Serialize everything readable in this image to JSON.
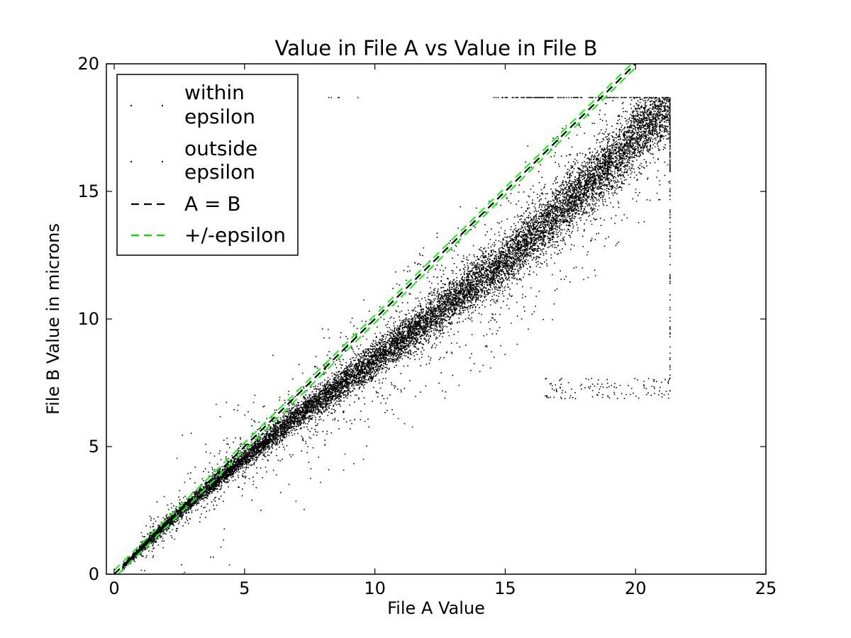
{
  "chart_data": {
    "type": "scatter",
    "title": "Value in File A vs Value in File B",
    "xlabel": "File A Value",
    "ylabel": "File B Value in microns",
    "xlim": [
      -0.3,
      25
    ],
    "ylim": [
      0,
      20
    ],
    "xticks": [
      0,
      5,
      10,
      15,
      20,
      25
    ],
    "yticks": [
      0,
      5,
      10,
      15,
      20
    ],
    "grid": false,
    "legend_position": "top-left",
    "legend": [
      {
        "label_lines": [
          "within",
          "epsilon"
        ],
        "kind": "marker"
      },
      {
        "label_lines": [
          "outside",
          "epsilon"
        ],
        "kind": "marker"
      },
      {
        "label_lines": [
          "A = B"
        ],
        "kind": "dashed-line",
        "color": "#000000"
      },
      {
        "label_lines": [
          "+/-epsilon"
        ],
        "kind": "dashed-line",
        "color": "#00dd00"
      }
    ],
    "colors": {
      "points": "#000000",
      "identity_line": "#000000",
      "epsilon_lines": "#22ee22"
    },
    "lines": {
      "identity": {
        "x": [
          0,
          20
        ],
        "y": [
          0,
          20
        ]
      },
      "epsilon_upper": {
        "x": [
          0,
          19.85
        ],
        "y": [
          0.15,
          20
        ]
      },
      "epsilon_lower": {
        "x": [
          0.15,
          20
        ],
        "y": [
          0,
          19.85
        ]
      }
    },
    "main_trend": {
      "description_points_x": [
        0,
        2,
        3,
        5,
        7,
        10,
        12,
        15,
        17,
        19,
        20,
        21.3
      ],
      "description_points_y": [
        0,
        2,
        2.9,
        4.6,
        6.2,
        8.4,
        10.0,
        12.3,
        14.2,
        16.1,
        17.2,
        18.5
      ]
    },
    "saturation": {
      "y_max": 18.7,
      "x_max": 21.3
    },
    "outlier_clusters": [
      {
        "x": [
          16.5,
          21.3
        ],
        "y": [
          6.8,
          7.8
        ]
      },
      {
        "x": [
          21.3,
          21.3
        ],
        "y": [
          7.0,
          18.7
        ]
      },
      {
        "x": [
          8,
          9.5
        ],
        "y": [
          18.7,
          18.7
        ]
      },
      {
        "x": [
          14.5,
          21.3
        ],
        "y": [
          18.7,
          18.7
        ]
      }
    ]
  }
}
